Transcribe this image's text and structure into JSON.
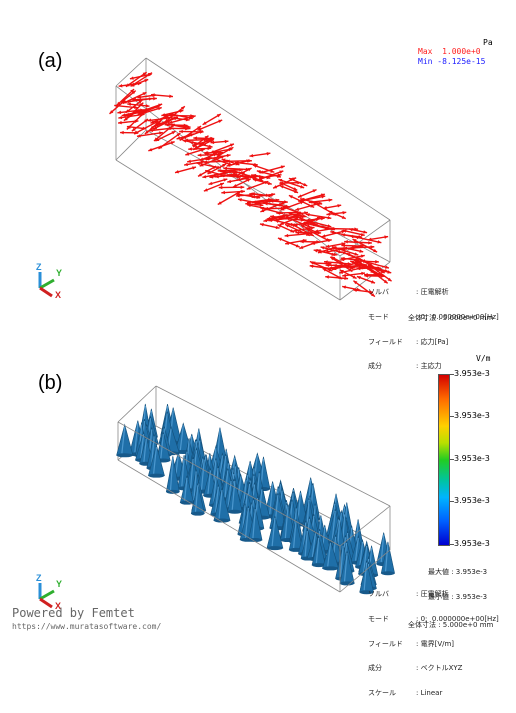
{
  "panel_a": {
    "label": "(a)",
    "unit": "Pa",
    "max_text": "Max  1.000e+0",
    "min_text": "Min -8.125e-15",
    "max_color": "#ff2020",
    "min_color": "#2020ff",
    "arrow_color": "#ee1111",
    "info": [
      {
        "key": "ソルバ",
        "value": ": 圧電解析"
      },
      {
        "key": "モード",
        "value": ": 0;  0.000000e+00[Hz]"
      },
      {
        "key": "フィールド",
        "value": ": 応力[Pa]"
      },
      {
        "key": "成分",
        "value": ": 主応力"
      }
    ],
    "total": "全体寸法 : 5.000e+0 mm",
    "axes": {
      "x": "X",
      "y": "Y",
      "z": "Z"
    }
  },
  "panel_b": {
    "label": "(b)",
    "unit": "V/m",
    "cone_color": "#1f6fa8",
    "colorbar_ticks": [
      "3.953e-3",
      "3.953e-3",
      "3.953e-3",
      "3.953e-3",
      "3.953e-3"
    ],
    "max_text": "最大値 : 3.953e-3",
    "min_text": "最小値 : 3.953e-3",
    "info": [
      {
        "key": "ソルバ",
        "value": ": 圧電解析"
      },
      {
        "key": "モード",
        "value": ": 0;  0.000000e+00[Hz]"
      },
      {
        "key": "フィールド",
        "value": ": 電界[V/m]"
      },
      {
        "key": "成分",
        "value": ": ベクトルXYZ"
      },
      {
        "key": "スケール",
        "value": ": Linear"
      }
    ],
    "total": "全体寸法 : 5.000e+0 mm",
    "axes": {
      "x": "X",
      "y": "Y",
      "z": "Z"
    }
  },
  "footer": {
    "powered": "Powered by Femtet",
    "url": "https://www.muratasoftware.com/"
  }
}
